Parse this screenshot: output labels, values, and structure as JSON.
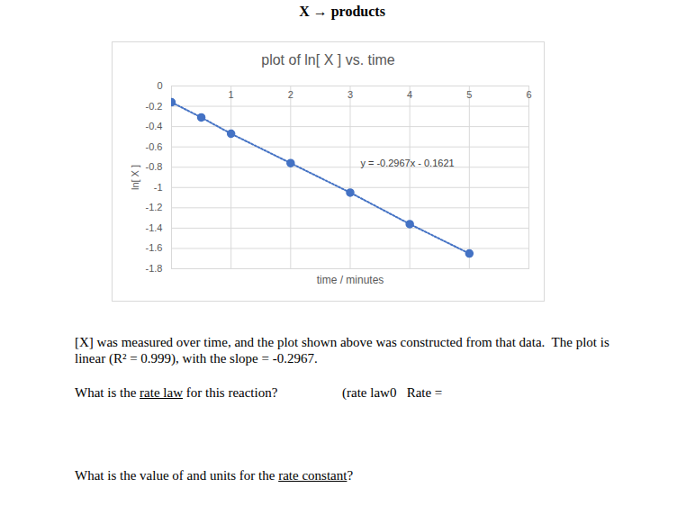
{
  "header": {
    "title": "X → products"
  },
  "chart_data": {
    "type": "scatter",
    "title": "plot of ln[ X ] vs. time",
    "x_label": "time / minutes",
    "y_label": "ln[ X ]",
    "x": [
      0,
      0.5,
      1,
      2,
      3,
      4,
      5
    ],
    "values": [
      -0.16,
      -0.31,
      -0.47,
      -0.76,
      -1.05,
      -1.36,
      -1.65
    ],
    "color": "#4472c4",
    "marker": "circle",
    "line_style": "dotted",
    "xlim": [
      0,
      6
    ],
    "xticks": [
      1,
      2,
      3,
      4,
      5,
      6
    ],
    "ylim": [
      -1.8,
      0
    ],
    "yticks": [
      0,
      -0.2,
      -0.4,
      -0.6,
      -0.8,
      -1,
      -1.2,
      -1.4,
      -1.6,
      -1.8
    ],
    "grid": true,
    "annotations": [
      "y = -0.2967x - 0.1621"
    ]
  },
  "document": {
    "paragraph": [
      "[X] was measured over time, and the plot shown above was constructed from that data.  The plot is",
      "linear (R² = 0.999), with the slope = -0.2967."
    ],
    "questions": [
      {
        "text": "What is the rate law for this reaction?",
        "underline": "rate law",
        "answer": "(rate law0   Rate ="
      },
      {
        "text": "What is the value of and units for the rate constant?",
        "underline": "rate constant"
      }
    ]
  }
}
